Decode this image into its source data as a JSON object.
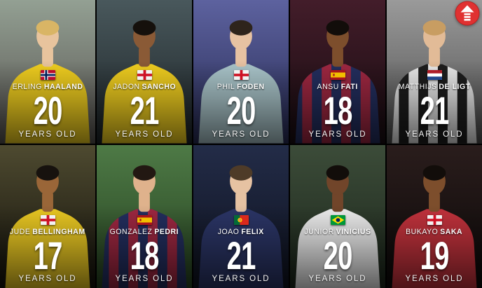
{
  "labels": {
    "years_old": "YEARS OLD"
  },
  "badge": {
    "color": "#e03131",
    "icon": "up-arrow"
  },
  "grid": {
    "columns": 5,
    "rows": 2,
    "background": "#000000"
  },
  "players": [
    {
      "first": "ERLING",
      "last": "HAALAND",
      "age": "20",
      "flag": "norway",
      "colors": {
        "bg_top": "#93a093",
        "bg_bottom": "#55514e",
        "jersey": "#f0ce1f",
        "skin": "#e8c49d",
        "hair": "#d9b565"
      }
    },
    {
      "first": "JADON",
      "last": "SANCHO",
      "age": "21",
      "flag": "england",
      "colors": {
        "bg_top": "#49585c",
        "bg_bottom": "#1c2326",
        "jersey": "#f0ce1f",
        "skin": "#8a5a36",
        "hair": "#15100c"
      }
    },
    {
      "first": "PHIL",
      "last": "FODEN",
      "age": "20",
      "flag": "england",
      "colors": {
        "bg_top": "#5d629f",
        "bg_bottom": "#262a52",
        "jersey": "#a9c4c9",
        "skin": "#e7c2a2",
        "hair": "#2e241c"
      }
    },
    {
      "first": "ANSU",
      "last": "FATI",
      "age": "18",
      "flag": "spain",
      "colors": {
        "bg_top": "#431d2a",
        "bg_bottom": "#170b10",
        "jersey": "#232e5e",
        "jersey_stripe": "#9e2741",
        "skin": "#7d4e2c",
        "hair": "#120d0a"
      }
    },
    {
      "first": "MATTHIJS",
      "last": "DE LIGT",
      "age": "21",
      "flag": "netherlands",
      "colors": {
        "bg_top": "#9a9a9a",
        "bg_bottom": "#4c4c4c",
        "jersey": "#e9e9e9",
        "jersey_stripe": "#1d1d1d",
        "skin": "#e2bb97",
        "hair": "#c89d62"
      }
    },
    {
      "first": "JUDE",
      "last": "BELLINGHAM",
      "age": "17",
      "flag": "england",
      "colors": {
        "bg_top": "#4e4a30",
        "bg_bottom": "#13110a",
        "jersey": "#eac822",
        "skin": "#9a6638",
        "hair": "#17120e"
      }
    },
    {
      "first": "GONZALEZ",
      "last": "PEDRI",
      "age": "18",
      "flag": "spain",
      "colors": {
        "bg_top": "#4e7a46",
        "bg_bottom": "#25401f",
        "jersey": "#232e5e",
        "jersey_stripe": "#9e2741",
        "skin": "#dfb28c",
        "hair": "#221812"
      }
    },
    {
      "first": "JOAO",
      "last": "FELIX",
      "age": "21",
      "flag": "portugal",
      "colors": {
        "bg_top": "#232c48",
        "bg_bottom": "#0d111d",
        "jersey": "#2b3566",
        "skin": "#e6c2a2",
        "hair": "#4e3b28"
      }
    },
    {
      "first": "JUNIOR",
      "last": "VINICIUS",
      "age": "20",
      "flag": "brazil",
      "colors": {
        "bg_top": "#3c4c39",
        "bg_bottom": "#1b251a",
        "jersey": "#ededed",
        "skin": "#71452a",
        "hair": "#120d0a"
      }
    },
    {
      "first": "BUKAYO",
      "last": "SAKA",
      "age": "19",
      "flag": "england",
      "colors": {
        "bg_top": "#2a1d1c",
        "bg_bottom": "#0b0808",
        "jersey": "#c2323c",
        "skin": "#7d4e2c",
        "hair": "#120d0a"
      }
    }
  ]
}
